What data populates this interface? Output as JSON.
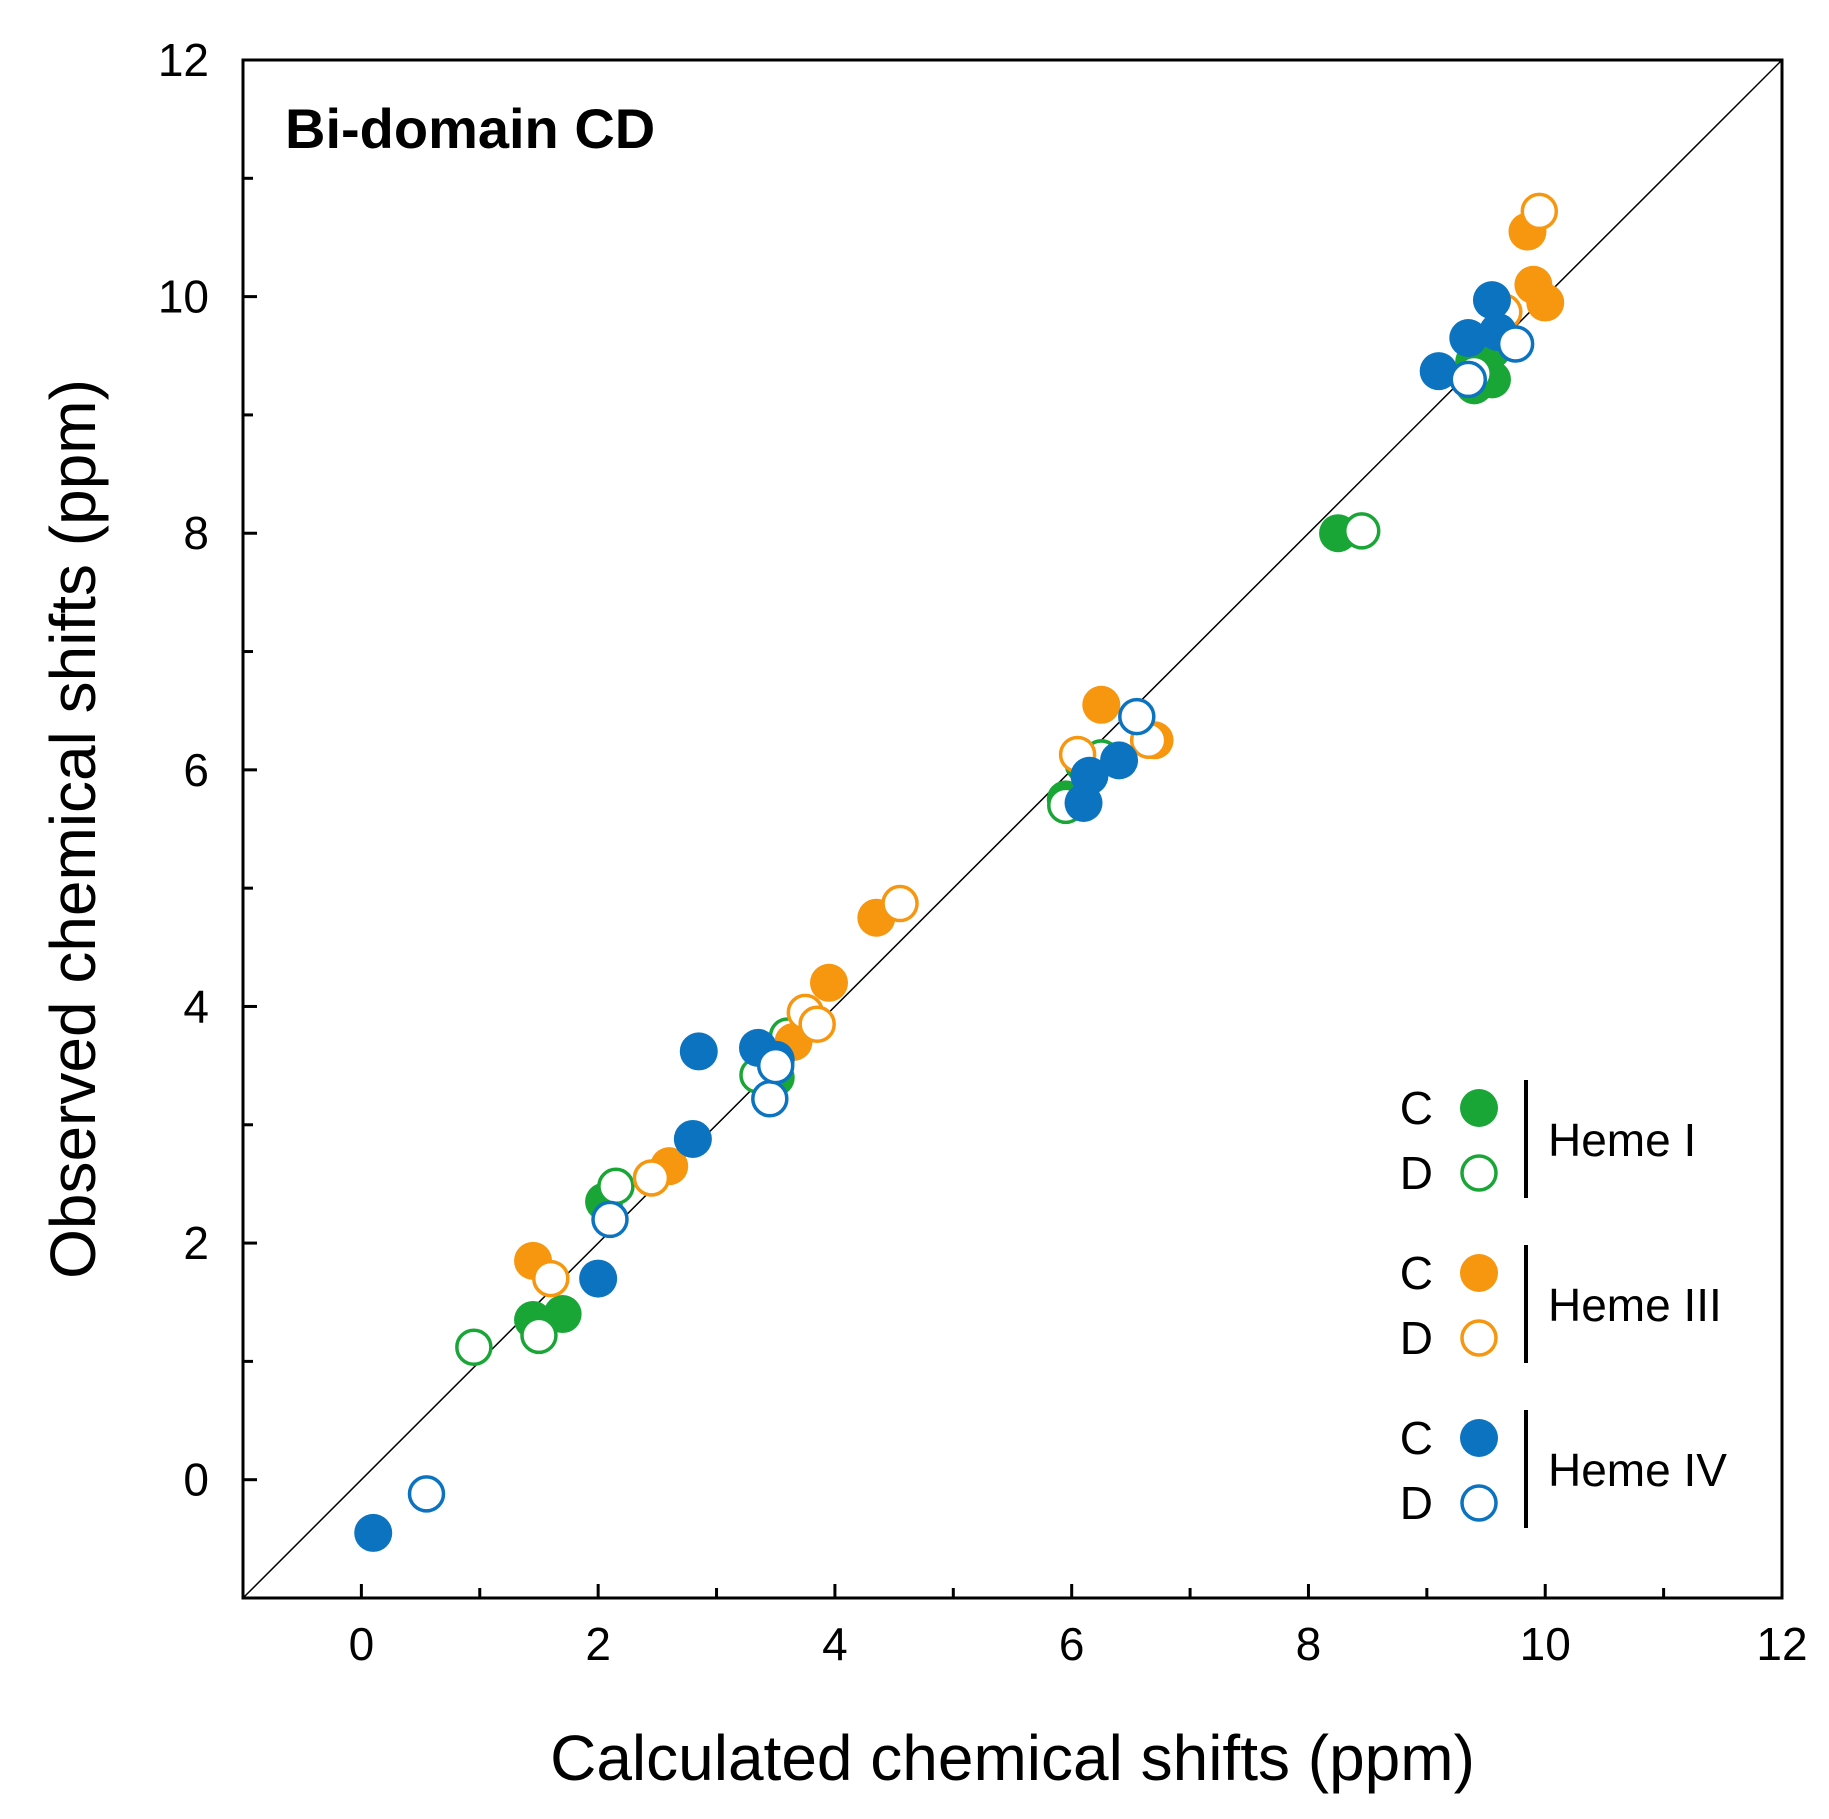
{
  "chart_data": {
    "type": "scatter",
    "title": "Bi-domain CD",
    "xlabel": "Calculated chemical shifts (ppm)",
    "ylabel": "Observed chemical shifts (ppm)",
    "xlim": [
      -1,
      12
    ],
    "ylim": [
      -1,
      12
    ],
    "x_ticks": [
      "0",
      "2",
      "4",
      "6",
      "8",
      "10",
      "12"
    ],
    "y_ticks": [
      "0",
      "2",
      "4",
      "6",
      "8",
      "10",
      "12"
    ],
    "reference_line": "y = x",
    "legend_position": "bottom-right",
    "series": [
      {
        "name": "Heme I",
        "state": "C",
        "color": "#1aa637",
        "filled": true,
        "points": [
          [
            1.45,
            1.35
          ],
          [
            1.7,
            1.4
          ],
          [
            2.05,
            2.35
          ],
          [
            3.4,
            3.4
          ],
          [
            3.5,
            3.4
          ],
          [
            3.45,
            3.5
          ],
          [
            5.95,
            5.75
          ],
          [
            6.1,
            6.05
          ],
          [
            6.25,
            6.1
          ],
          [
            8.25,
            8.0
          ],
          [
            9.4,
            9.25
          ],
          [
            9.55,
            9.3
          ],
          [
            9.4,
            9.45
          ],
          [
            9.55,
            9.55
          ]
        ]
      },
      {
        "name": "Heme I",
        "state": "D",
        "color": "#1aa637",
        "filled": false,
        "points": [
          [
            0.95,
            1.12
          ],
          [
            1.5,
            1.22
          ],
          [
            2.15,
            2.48
          ],
          [
            3.35,
            3.42
          ],
          [
            3.6,
            3.75
          ],
          [
            5.95,
            5.7
          ],
          [
            6.25,
            6.1
          ],
          [
            8.45,
            8.02
          ],
          [
            9.4,
            9.35
          ]
        ]
      },
      {
        "name": "Heme III",
        "state": "C",
        "color": "#f7960f",
        "filled": true,
        "points": [
          [
            1.45,
            1.85
          ],
          [
            2.6,
            2.65
          ],
          [
            3.65,
            3.7
          ],
          [
            3.95,
            4.2
          ],
          [
            4.35,
            4.75
          ],
          [
            6.25,
            6.55
          ],
          [
            6.7,
            6.25
          ],
          [
            9.85,
            10.55
          ],
          [
            9.9,
            10.1
          ],
          [
            10.0,
            9.95
          ]
        ]
      },
      {
        "name": "Heme III",
        "state": "D",
        "color": "#f7960f",
        "filled": false,
        "points": [
          [
            1.6,
            1.7
          ],
          [
            2.45,
            2.55
          ],
          [
            3.75,
            3.95
          ],
          [
            3.85,
            3.85
          ],
          [
            4.55,
            4.87
          ],
          [
            6.05,
            6.13
          ],
          [
            6.65,
            6.25
          ],
          [
            9.65,
            9.87
          ],
          [
            9.95,
            10.72
          ]
        ]
      },
      {
        "name": "Heme IV",
        "state": "C",
        "color": "#0b73c0",
        "filled": true,
        "points": [
          [
            0.1,
            -0.45
          ],
          [
            2.0,
            1.7
          ],
          [
            2.8,
            2.88
          ],
          [
            2.85,
            3.62
          ],
          [
            3.35,
            3.65
          ],
          [
            3.5,
            3.55
          ],
          [
            6.1,
            5.72
          ],
          [
            6.15,
            5.95
          ],
          [
            6.4,
            6.08
          ],
          [
            9.1,
            9.37
          ],
          [
            9.35,
            9.65
          ],
          [
            9.55,
            9.97
          ],
          [
            9.6,
            9.7
          ]
        ]
      },
      {
        "name": "Heme IV",
        "state": "D",
        "color": "#0b73c0",
        "filled": false,
        "points": [
          [
            0.55,
            -0.12
          ],
          [
            2.1,
            2.2
          ],
          [
            3.45,
            3.22
          ],
          [
            3.5,
            3.5
          ],
          [
            6.55,
            6.45
          ],
          [
            9.35,
            9.3
          ],
          [
            9.75,
            9.6
          ]
        ]
      }
    ],
    "legend": [
      {
        "group": "Heme I",
        "entries": [
          {
            "label": "C",
            "color": "#1aa637",
            "filled": true
          },
          {
            "label": "D",
            "color": "#1aa637",
            "filled": false
          }
        ]
      },
      {
        "group": "Heme III",
        "entries": [
          {
            "label": "C",
            "color": "#f7960f",
            "filled": true
          },
          {
            "label": "D",
            "color": "#f7960f",
            "filled": false
          }
        ]
      },
      {
        "group": "Heme IV",
        "entries": [
          {
            "label": "C",
            "color": "#0b73c0",
            "filled": true
          },
          {
            "label": "D",
            "color": "#0b73c0",
            "filled": false
          }
        ]
      }
    ]
  }
}
